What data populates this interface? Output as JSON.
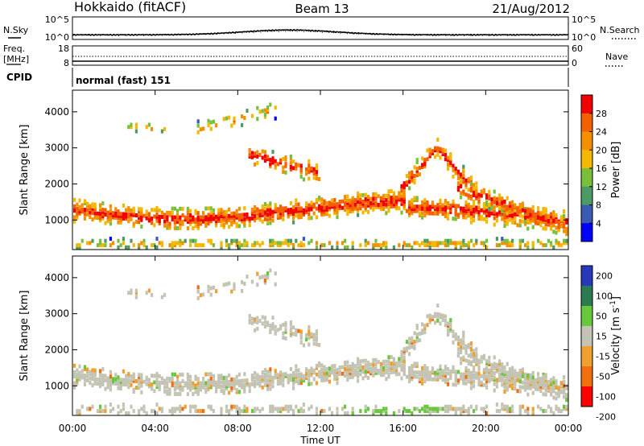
{
  "header": {
    "station": "Hokkaido (fitACF)",
    "beam": "Beam 13",
    "date": "21/Aug/2012"
  },
  "noise_panel": {
    "left_label": "N.Sky",
    "left_ticks": [
      "10^5",
      "10^0"
    ],
    "right_label": "N.Search",
    "right_ticks": [
      "10^5",
      "10^0"
    ]
  },
  "freq_panel": {
    "left_label_1": "Freq.",
    "left_label_2": "[MHz]",
    "left_ticks": [
      "18",
      "8"
    ],
    "right_label": "Nave",
    "right_ticks": [
      "60",
      "0"
    ]
  },
  "cpid_panel": {
    "label": "CPID",
    "mode": "normal (fast) 151"
  },
  "colors": {
    "power_scale": [
      "#0000ff",
      "#3a5ab4",
      "#4c9a64",
      "#78c03c",
      "#f4b800",
      "#f49000",
      "#f46000",
      "#f00000"
    ],
    "velocity_scale": [
      "#2838b8",
      "#2c7a50",
      "#68c83c",
      "#c4c4b4",
      "#f0a030",
      "#f07010",
      "#ff0000"
    ]
  },
  "chart_data": [
    {
      "type": "heatmap",
      "name": "power",
      "ylabel": "Slant Range [km]",
      "ylim": [
        180,
        4600
      ],
      "yticks": [
        1000,
        2000,
        3000,
        4000
      ],
      "xlim": [
        0,
        24
      ],
      "xticks": [
        0,
        4,
        8,
        12,
        16,
        20,
        24
      ],
      "colorbar": {
        "label": "Power [dB]",
        "range": [
          0,
          32
        ],
        "ticks": [
          4,
          8,
          12,
          16,
          20,
          24,
          28
        ]
      }
    },
    {
      "type": "heatmap",
      "name": "velocity",
      "ylabel": "Slant Range [km]",
      "ylim": [
        180,
        4600
      ],
      "yticks": [
        1000,
        2000,
        3000,
        4000
      ],
      "xlim": [
        0,
        24
      ],
      "xticks": [
        0,
        4,
        8,
        12,
        16,
        20,
        24
      ],
      "xticklabels": [
        "00:00",
        "04:00",
        "08:00",
        "12:00",
        "16:00",
        "20:00",
        "00:00"
      ],
      "xlabel": "Time UT",
      "colorbar": {
        "label": "Velocity [m s",
        "label_sup": "-1",
        "label_end": "]",
        "tick_labels": [
          "200",
          "100",
          "50",
          "15",
          "-15",
          "-50",
          "-100",
          "-200"
        ]
      }
    }
  ]
}
